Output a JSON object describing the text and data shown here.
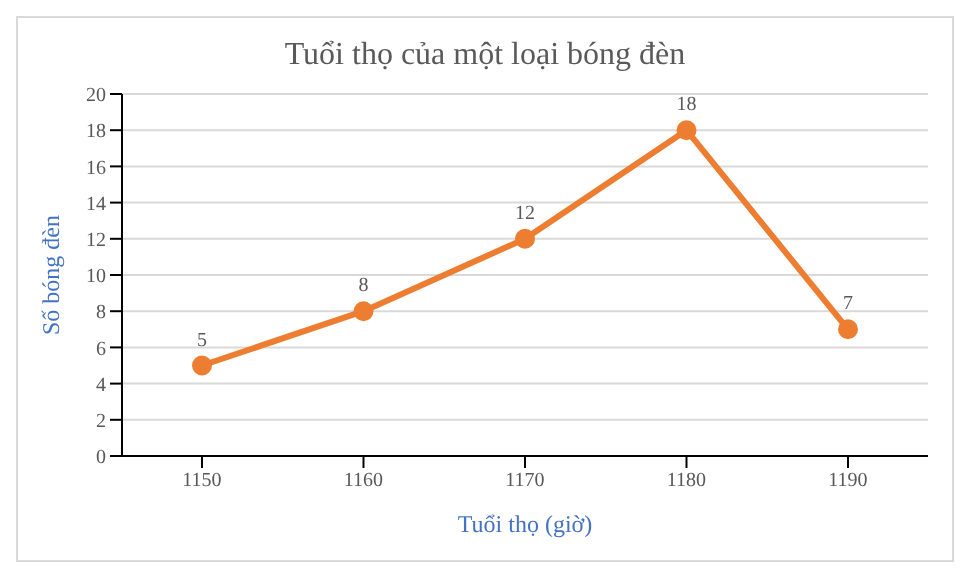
{
  "chart_data": {
    "type": "line",
    "title": "Tuổi thọ của một loại bóng đèn",
    "xlabel": "Tuổi thọ (giờ)",
    "ylabel": "Số bóng đèn",
    "categories": [
      "1150",
      "1160",
      "1170",
      "1180",
      "1190"
    ],
    "series": [
      {
        "color": "#ed7d31",
        "values": [
          5,
          8,
          12,
          18,
          7
        ]
      }
    ],
    "ylim": [
      0,
      20
    ],
    "yticks": [
      0,
      2,
      4,
      6,
      8,
      10,
      12,
      14,
      16,
      18,
      20
    ],
    "grid": "y",
    "marker": "circle",
    "line_style": "solid",
    "data_labels": true,
    "legend": false
  }
}
